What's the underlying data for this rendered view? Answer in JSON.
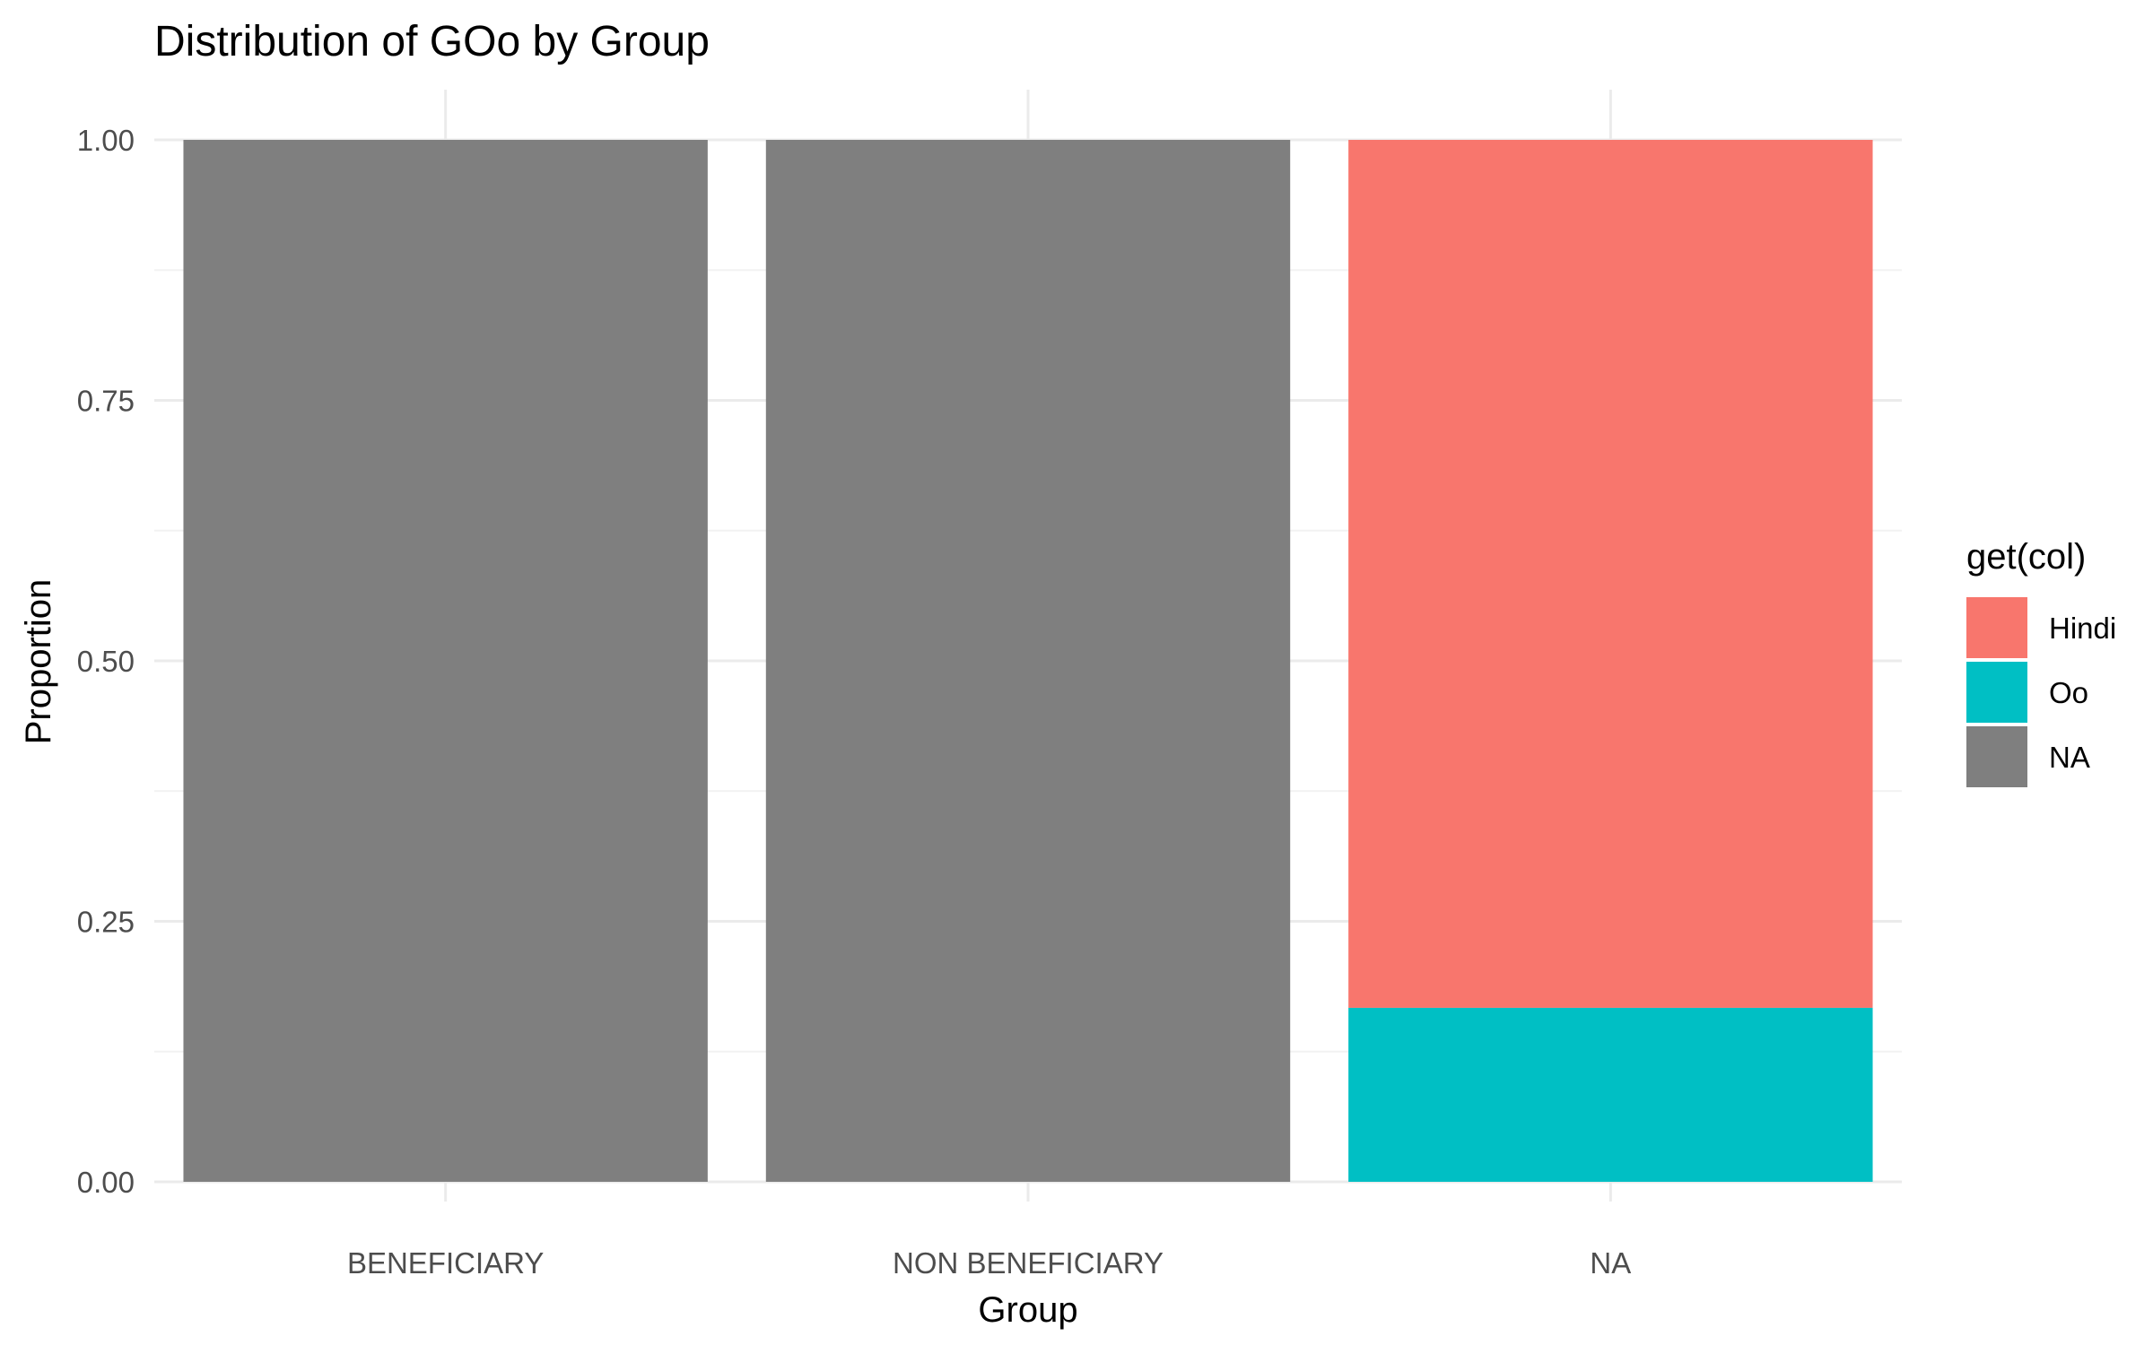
{
  "chart_data": {
    "type": "bar",
    "stacked": true,
    "title": "Distribution of GOo by Group",
    "xlabel": "Group",
    "ylabel": "Proportion",
    "ylim": [
      0,
      1
    ],
    "yticks": [
      "0.00",
      "0.25",
      "0.50",
      "0.75",
      "1.00"
    ],
    "categories": [
      "BENEFICIARY",
      "NON BENEFICIARY",
      "NA"
    ],
    "series": [
      {
        "name": "Hindi",
        "color": "#F8766D",
        "values": [
          0,
          0,
          0.833
        ]
      },
      {
        "name": "Oo",
        "color": "#00BFC4",
        "values": [
          0,
          0,
          0.167
        ]
      },
      {
        "name": "NA",
        "color": "#7F7F7F",
        "values": [
          1,
          1,
          0
        ]
      }
    ],
    "stack_order_bottom_to_top": [
      "NA",
      "Oo",
      "Hindi"
    ],
    "legend": {
      "title": "get(col)",
      "position": "right"
    },
    "grid": true
  }
}
